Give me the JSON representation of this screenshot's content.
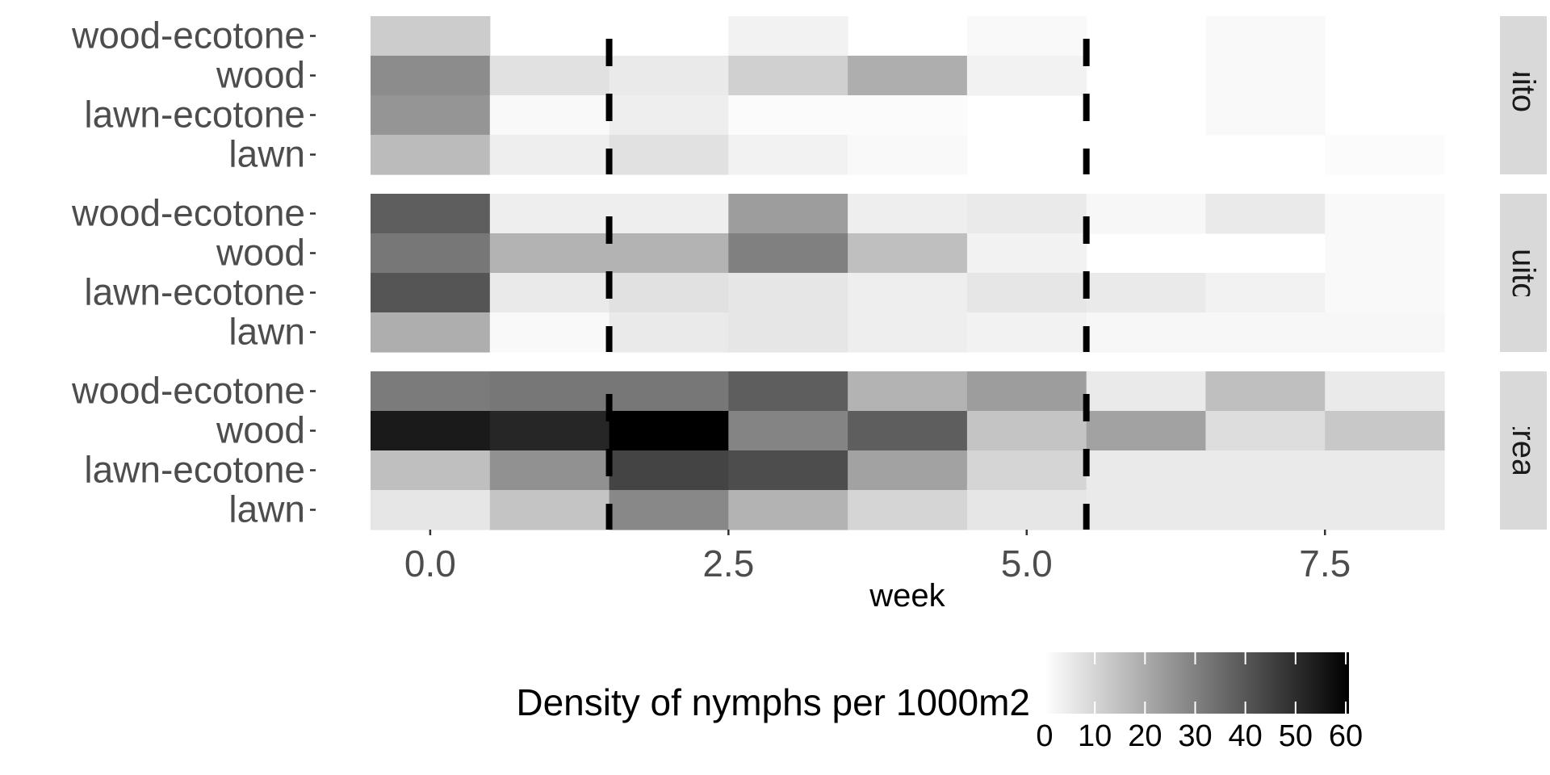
{
  "chart_data": {
    "type": "heatmap",
    "xlabel": "week",
    "x": [
      0,
      1,
      2,
      3,
      4,
      5,
      6,
      7,
      8
    ],
    "x_ticks": [
      "0.0",
      "2.5",
      "5.0",
      "7.5"
    ],
    "x_tick_values": [
      0,
      2.5,
      5,
      7.5
    ],
    "xlim": [
      -0.5,
      8.5
    ],
    "rows": [
      "wood-ecotone",
      "wood",
      "lawn-ecotone",
      "lawn"
    ],
    "color_scale": {
      "min": 0,
      "max": 60,
      "low_color": "#ffffff",
      "high_color": "#000000",
      "ticks": [
        "0",
        "10",
        "20",
        "30",
        "40",
        "50",
        "60"
      ],
      "tick_values": [
        0,
        10,
        20,
        30,
        40,
        50,
        60
      ]
    },
    "legend": {
      "title": "Density of nymphs per 1000m2",
      "position": "bottom"
    },
    "reference_lines": {
      "x": [
        1.5,
        5.5
      ],
      "style": "dashed"
    },
    "panels": [
      {
        "strip": "Mosquito & Tick",
        "values": [
          [
            12,
            null,
            null,
            3,
            null,
            1.5,
            null,
            1.5,
            null
          ],
          [
            27,
            7,
            5,
            11,
            19,
            3,
            null,
            1.5,
            null
          ],
          [
            25,
            1.5,
            4,
            1,
            1,
            null,
            null,
            1.5,
            null
          ],
          [
            16,
            4,
            7,
            3,
            1.5,
            null,
            null,
            null,
            1
          ]
        ]
      },
      {
        "strip": "Mosquito Only",
        "values": [
          [
            38,
            4,
            4,
            23,
            4,
            5,
            2,
            5,
            1.5
          ],
          [
            32,
            18,
            18,
            30,
            15,
            3,
            null,
            null,
            1.5
          ],
          [
            40,
            5,
            7,
            6,
            4,
            6,
            5,
            3,
            1.5
          ],
          [
            19,
            1.5,
            5,
            6,
            4,
            3,
            2,
            2,
            2
          ]
        ]
      },
      {
        "strip": "Untreated",
        "values": [
          [
            31,
            32,
            32,
            38,
            18,
            23,
            5,
            15,
            5
          ],
          [
            54,
            51,
            60,
            29,
            38,
            14,
            22,
            8,
            13
          ],
          [
            15,
            26,
            44,
            42,
            22,
            10,
            5,
            5,
            5
          ],
          [
            6,
            14,
            28,
            18,
            10,
            6,
            5,
            5,
            5
          ]
        ]
      }
    ]
  }
}
